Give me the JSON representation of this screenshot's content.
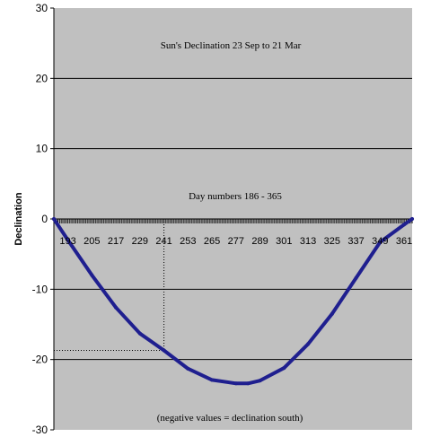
{
  "chart_data": {
    "type": "line",
    "title": "Sun's Declination 23 Sep to 21 Mar",
    "subtitle": "Day numbers 186 - 365",
    "annotation": "(negative values = declination south)",
    "ylabel": "Declination",
    "xlabel": "",
    "ylim": [
      -30,
      30
    ],
    "yticks": [
      30,
      20,
      10,
      0,
      -10,
      -20,
      -30
    ],
    "xlim": [
      186,
      365
    ],
    "xticks": [
      193,
      205,
      217,
      229,
      241,
      253,
      265,
      277,
      289,
      301,
      313,
      325,
      337,
      349,
      361
    ],
    "grid": true,
    "plot_background": "#c0c0c0",
    "series": [
      {
        "color": "#1f1f8f",
        "x": [
          186,
          193,
          205,
          217,
          229,
          241,
          253,
          265,
          277,
          283,
          289,
          301,
          313,
          325,
          337,
          349,
          361,
          365
        ],
        "values": [
          0,
          -3.0,
          -8.0,
          -12.6,
          -16.3,
          -18.7,
          -21.3,
          -22.9,
          -23.4,
          -23.4,
          -23.0,
          -21.2,
          -17.8,
          -13.5,
          -8.4,
          -3.3,
          -0.8,
          0
        ]
      }
    ],
    "reference_line": {
      "x": 241,
      "y": -18.7,
      "style": "dotted"
    }
  }
}
